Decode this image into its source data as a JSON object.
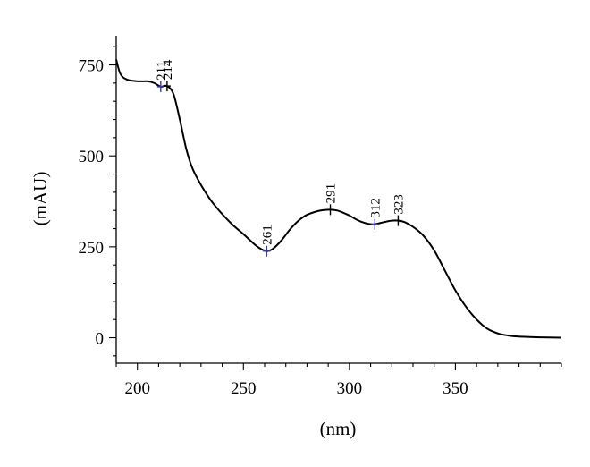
{
  "chart_data": {
    "type": "line",
    "xlabel": "(nm)",
    "ylabel": "(mAU)",
    "xlim": [
      190,
      400
    ],
    "ylim": [
      -70,
      830
    ],
    "x_ticks": [
      200,
      250,
      300,
      350
    ],
    "y_ticks": [
      0,
      250,
      500,
      750
    ],
    "x_minor_step": 10,
    "y_minor_step": 50,
    "grid": false,
    "series": [
      {
        "color": "#000000",
        "x": [
          190,
          192,
          195,
          200,
          205,
          208,
          211,
          214,
          217,
          220,
          223,
          226,
          230,
          235,
          240,
          245,
          250,
          255,
          258,
          261,
          264,
          268,
          272,
          276,
          280,
          285,
          288,
          291,
          294,
          297,
          300,
          303,
          306,
          309,
          312,
          315,
          318,
          320,
          323,
          326,
          330,
          335,
          340,
          345,
          350,
          355,
          360,
          365,
          370,
          375,
          380,
          390,
          400
        ],
        "y": [
          765,
          725,
          710,
          705,
          705,
          700,
          690,
          692,
          670,
          600,
          520,
          465,
          420,
          375,
          340,
          310,
          285,
          258,
          245,
          238,
          245,
          268,
          298,
          322,
          338,
          348,
          351,
          352,
          350,
          344,
          336,
          326,
          318,
          313,
          312,
          316,
          320,
          322,
          322,
          318,
          305,
          280,
          240,
          185,
          130,
          85,
          50,
          25,
          12,
          6,
          3,
          1,
          0
        ]
      }
    ],
    "peak_markers": [
      {
        "x": 211,
        "y": 690,
        "label": "211",
        "color": "#3a3aa8"
      },
      {
        "x": 214,
        "y": 692,
        "label": "214",
        "color": "#000000"
      },
      {
        "x": 261,
        "y": 238,
        "label": "261",
        "color": "#3a3aa8"
      },
      {
        "x": 291,
        "y": 352,
        "label": "291",
        "color": "#000000"
      },
      {
        "x": 312,
        "y": 312,
        "label": "312",
        "color": "#3a3aa8"
      },
      {
        "x": 323,
        "y": 322,
        "label": "323",
        "color": "#000000"
      }
    ]
  }
}
